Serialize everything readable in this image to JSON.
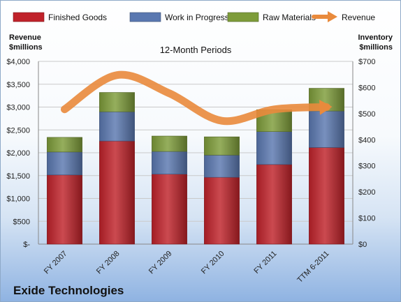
{
  "chart_data": {
    "type": "bar",
    "stacked": true,
    "title": "12-Month Periods",
    "categories": [
      "FY 2007",
      "FY 2008",
      "FY 2009",
      "FY 2010",
      "FY 2011",
      "TTM 6-2011"
    ],
    "left_axis": {
      "label_line1": "Revenue",
      "label_line2": "$millions",
      "ylim": [
        0,
        4000
      ],
      "ticks": [
        0,
        500,
        1000,
        1500,
        2000,
        2500,
        3000,
        3500,
        4000
      ],
      "tick_labels": [
        "$-",
        "$500",
        "$1,000",
        "$1,500",
        "$2,000",
        "$2,500",
        "$3,000",
        "$3,500",
        "$4,000"
      ]
    },
    "right_axis": {
      "label_line1": "Inventory",
      "label_line2": "$millions",
      "ylim": [
        0,
        700
      ],
      "ticks": [
        0,
        100,
        200,
        300,
        400,
        500,
        600,
        700
      ],
      "tick_labels": [
        "$0",
        "$100",
        "$200",
        "$300",
        "$400",
        "$500",
        "$600",
        "$700"
      ]
    },
    "series": [
      {
        "name": "Finished Goods",
        "axis": "right",
        "color": "#c0222a",
        "values": [
          265,
          395,
          268,
          256,
          305,
          370
        ]
      },
      {
        "name": "Work in Progress",
        "axis": "right",
        "color": "#5a78b0",
        "values": [
          88,
          112,
          87,
          85,
          126,
          140
        ]
      },
      {
        "name": "Raw Materials",
        "axis": "right",
        "color": "#7e9c3a",
        "values": [
          56,
          74,
          59,
          70,
          84,
          87
        ]
      }
    ],
    "line_series": {
      "name": "Revenue",
      "axis": "left",
      "color": "#e98a3c",
      "values": [
        2950,
        3700,
        3300,
        2700,
        2950,
        3000
      ]
    },
    "grid": true,
    "legend_position": "top"
  },
  "company": "Exide Technologies"
}
